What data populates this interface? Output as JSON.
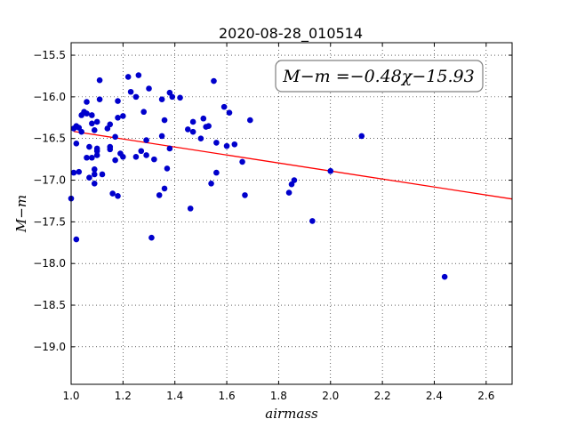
{
  "chart_data": {
    "type": "scatter",
    "title": "2020-08-28_010514",
    "xlabel": "airmass",
    "ylabel": "M−m",
    "xlim": [
      1.0,
      2.7
    ],
    "ylim": [
      -19.45,
      -15.35
    ],
    "y_inverted": true,
    "grid": true,
    "x_ticks": [
      "1.0",
      "1.2",
      "1.4",
      "1.6",
      "1.8",
      "2.0",
      "2.2",
      "2.4",
      "2.6"
    ],
    "y_ticks": [
      "−15.5",
      "−16.0",
      "−16.5",
      "−17.0",
      "−17.5",
      "−18.0",
      "−18.5",
      "−19.0"
    ],
    "annotation": "M−m =−0.48χ−15.93",
    "annotation_position": "top-right",
    "fit": {
      "slope": -0.48,
      "intercept": -15.93,
      "color": "#ff0000"
    },
    "point_color": "#0000cc",
    "series": [
      {
        "points": [
          [
            1.0,
            -17.22
          ],
          [
            1.01,
            -16.38
          ],
          [
            1.02,
            -16.35
          ],
          [
            1.01,
            -16.91
          ],
          [
            1.02,
            -16.56
          ],
          [
            1.02,
            -17.71
          ],
          [
            1.03,
            -16.9
          ],
          [
            1.03,
            -16.37
          ],
          [
            1.04,
            -16.42
          ],
          [
            1.04,
            -16.22
          ],
          [
            1.05,
            -16.18
          ],
          [
            1.06,
            -16.06
          ],
          [
            1.06,
            -16.2
          ],
          [
            1.06,
            -16.73
          ],
          [
            1.07,
            -16.6
          ],
          [
            1.07,
            -16.97
          ],
          [
            1.08,
            -16.73
          ],
          [
            1.08,
            -16.32
          ],
          [
            1.08,
            -16.22
          ],
          [
            1.09,
            -16.87
          ],
          [
            1.09,
            -16.93
          ],
          [
            1.09,
            -17.04
          ],
          [
            1.09,
            -16.4
          ],
          [
            1.1,
            -16.3
          ],
          [
            1.1,
            -16.62
          ],
          [
            1.1,
            -16.65
          ],
          [
            1.1,
            -16.7
          ],
          [
            1.11,
            -16.03
          ],
          [
            1.11,
            -15.8
          ],
          [
            1.12,
            -16.93
          ],
          [
            1.14,
            -16.38
          ],
          [
            1.15,
            -16.33
          ],
          [
            1.15,
            -16.6
          ],
          [
            1.15,
            -16.63
          ],
          [
            1.16,
            -17.16
          ],
          [
            1.17,
            -16.48
          ],
          [
            1.17,
            -16.76
          ],
          [
            1.18,
            -17.19
          ],
          [
            1.18,
            -16.25
          ],
          [
            1.18,
            -16.05
          ],
          [
            1.19,
            -16.68
          ],
          [
            1.2,
            -16.72
          ],
          [
            1.2,
            -16.23
          ],
          [
            1.22,
            -15.76
          ],
          [
            1.23,
            -15.94
          ],
          [
            1.25,
            -16.0
          ],
          [
            1.25,
            -16.72
          ],
          [
            1.26,
            -15.74
          ],
          [
            1.27,
            -16.65
          ],
          [
            1.28,
            -16.18
          ],
          [
            1.29,
            -16.52
          ],
          [
            1.29,
            -16.7
          ],
          [
            1.3,
            -15.9
          ],
          [
            1.31,
            -17.69
          ],
          [
            1.32,
            -16.75
          ],
          [
            1.34,
            -17.18
          ],
          [
            1.35,
            -16.47
          ],
          [
            1.35,
            -16.03
          ],
          [
            1.36,
            -16.28
          ],
          [
            1.36,
            -17.1
          ],
          [
            1.37,
            -16.86
          ],
          [
            1.38,
            -15.95
          ],
          [
            1.38,
            -16.62
          ],
          [
            1.39,
            -16.0
          ],
          [
            1.42,
            -16.01
          ],
          [
            1.45,
            -16.39
          ],
          [
            1.46,
            -17.34
          ],
          [
            1.47,
            -16.3
          ],
          [
            1.47,
            -16.42
          ],
          [
            1.5,
            -16.5
          ],
          [
            1.51,
            -16.26
          ],
          [
            1.52,
            -16.36
          ],
          [
            1.53,
            -16.35
          ],
          [
            1.54,
            -17.04
          ],
          [
            1.55,
            -15.81
          ],
          [
            1.56,
            -16.55
          ],
          [
            1.56,
            -16.91
          ],
          [
            1.59,
            -16.12
          ],
          [
            1.6,
            -16.59
          ],
          [
            1.61,
            -16.19
          ],
          [
            1.63,
            -16.57
          ],
          [
            1.66,
            -16.78
          ],
          [
            1.67,
            -17.18
          ],
          [
            1.69,
            -16.28
          ],
          [
            1.84,
            -17.15
          ],
          [
            1.85,
            -17.05
          ],
          [
            1.86,
            -17.0
          ],
          [
            1.93,
            -17.49
          ],
          [
            2.0,
            -16.89
          ],
          [
            2.12,
            -16.47
          ],
          [
            2.44,
            -18.16
          ]
        ]
      }
    ]
  }
}
